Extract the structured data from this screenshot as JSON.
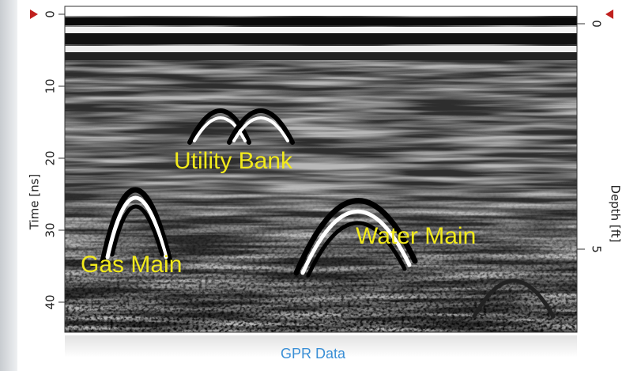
{
  "left_axis": {
    "label": "Time [ns]",
    "ticks": [
      0,
      10,
      20,
      30,
      40
    ]
  },
  "right_axis": {
    "label": "Depth [ft]",
    "ticks": [
      0,
      5
    ]
  },
  "annotations": [
    "Utility Bank",
    "Gas Main",
    "Water Main"
  ],
  "caption": "GPR Data"
}
